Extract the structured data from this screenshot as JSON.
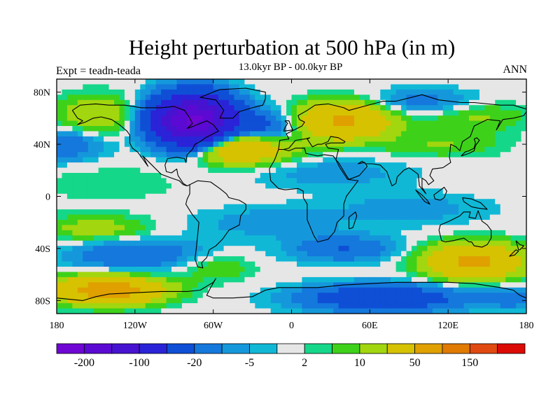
{
  "header": {
    "title": "Height perturbation at 500 hPa (in m)",
    "subtitle": "13.0kyr BP - 00.0kyr BP",
    "left_label": "Expt = teadn-teada",
    "right_label": "ANN"
  },
  "axes": {
    "x_ticks": [
      {
        "value": -180,
        "label": "180"
      },
      {
        "value": -120,
        "label": "120W"
      },
      {
        "value": -60,
        "label": "60W"
      },
      {
        "value": 0,
        "label": "0"
      },
      {
        "value": 60,
        "label": "60E"
      },
      {
        "value": 120,
        "label": "120E"
      },
      {
        "value": 180,
        "label": "180"
      }
    ],
    "y_ticks": [
      {
        "value": 80,
        "label": "80N"
      },
      {
        "value": 40,
        "label": "40N"
      },
      {
        "value": 0,
        "label": "0"
      },
      {
        "value": -40,
        "label": "40S"
      },
      {
        "value": -80,
        "label": "80S"
      }
    ],
    "lon_range": [
      -180,
      180
    ],
    "lat_range": [
      -90,
      90
    ]
  },
  "colorbar": {
    "colors": [
      "#6f06d4",
      "#5a0ad2",
      "#4713d0",
      "#2a23d8",
      "#0f4fd6",
      "#1478dc",
      "#1598db",
      "#10b8d6",
      "#e6e6e6",
      "#15d789",
      "#3ed11a",
      "#a2d60f",
      "#d6c200",
      "#dfa000",
      "#e07a00",
      "#e04a10",
      "#dc0a05"
    ],
    "labels": [
      {
        "boundary": 1,
        "text": "-200"
      },
      {
        "boundary": 3,
        "text": "-100"
      },
      {
        "boundary": 5,
        "text": "-20"
      },
      {
        "boundary": 7,
        "text": "-5"
      },
      {
        "boundary": 9,
        "text": "2"
      },
      {
        "boundary": 11,
        "text": "10"
      },
      {
        "boundary": 13,
        "text": "50"
      },
      {
        "boundary": 15,
        "text": "150"
      }
    ]
  },
  "field_anomalies": [
    {
      "lon": -75,
      "lat": 58,
      "v": -210,
      "rx": 28,
      "ry": 18
    },
    {
      "lon": -20,
      "lat": 50,
      "v": -30,
      "rx": 25,
      "ry": 15
    },
    {
      "lon": -40,
      "lat": 38,
      "v": 60,
      "rx": 38,
      "ry": 12
    },
    {
      "lon": 40,
      "lat": 58,
      "v": 55,
      "rx": 35,
      "ry": 14
    },
    {
      "lon": 100,
      "lat": 72,
      "v": -15,
      "rx": 45,
      "ry": 10
    },
    {
      "lon": 140,
      "lat": 62,
      "v": 12,
      "rx": 40,
      "ry": 12
    },
    {
      "lon": -150,
      "lat": 62,
      "v": 20,
      "rx": 30,
      "ry": 15
    },
    {
      "lon": -175,
      "lat": 40,
      "v": -20,
      "rx": 30,
      "ry": 12
    },
    {
      "lon": 115,
      "lat": 40,
      "v": 10,
      "rx": 45,
      "ry": 10
    },
    {
      "lon": 30,
      "lat": 18,
      "v": -8,
      "rx": 60,
      "ry": 12
    },
    {
      "lon": -140,
      "lat": 10,
      "v": 4,
      "rx": 60,
      "ry": 15
    },
    {
      "lon": 90,
      "lat": -10,
      "v": -8,
      "rx": 60,
      "ry": 12
    },
    {
      "lon": -20,
      "lat": -20,
      "v": -8,
      "rx": 55,
      "ry": 12
    },
    {
      "lon": -150,
      "lat": -25,
      "v": 15,
      "rx": 40,
      "ry": 10
    },
    {
      "lon": -120,
      "lat": -45,
      "v": -20,
      "rx": 50,
      "ry": 12
    },
    {
      "lon": 40,
      "lat": -40,
      "v": -20,
      "rx": 40,
      "ry": 10
    },
    {
      "lon": 140,
      "lat": -50,
      "v": 60,
      "rx": 35,
      "ry": 13
    },
    {
      "lon": -60,
      "lat": -55,
      "v": 10,
      "rx": 30,
      "ry": 10
    },
    {
      "lon": -140,
      "lat": -72,
      "v": 70,
      "rx": 40,
      "ry": 10
    },
    {
      "lon": 70,
      "lat": -78,
      "v": -40,
      "rx": 60,
      "ry": 10
    },
    {
      "lon": 170,
      "lat": -78,
      "v": -15,
      "rx": 25,
      "ry": 8
    }
  ]
}
